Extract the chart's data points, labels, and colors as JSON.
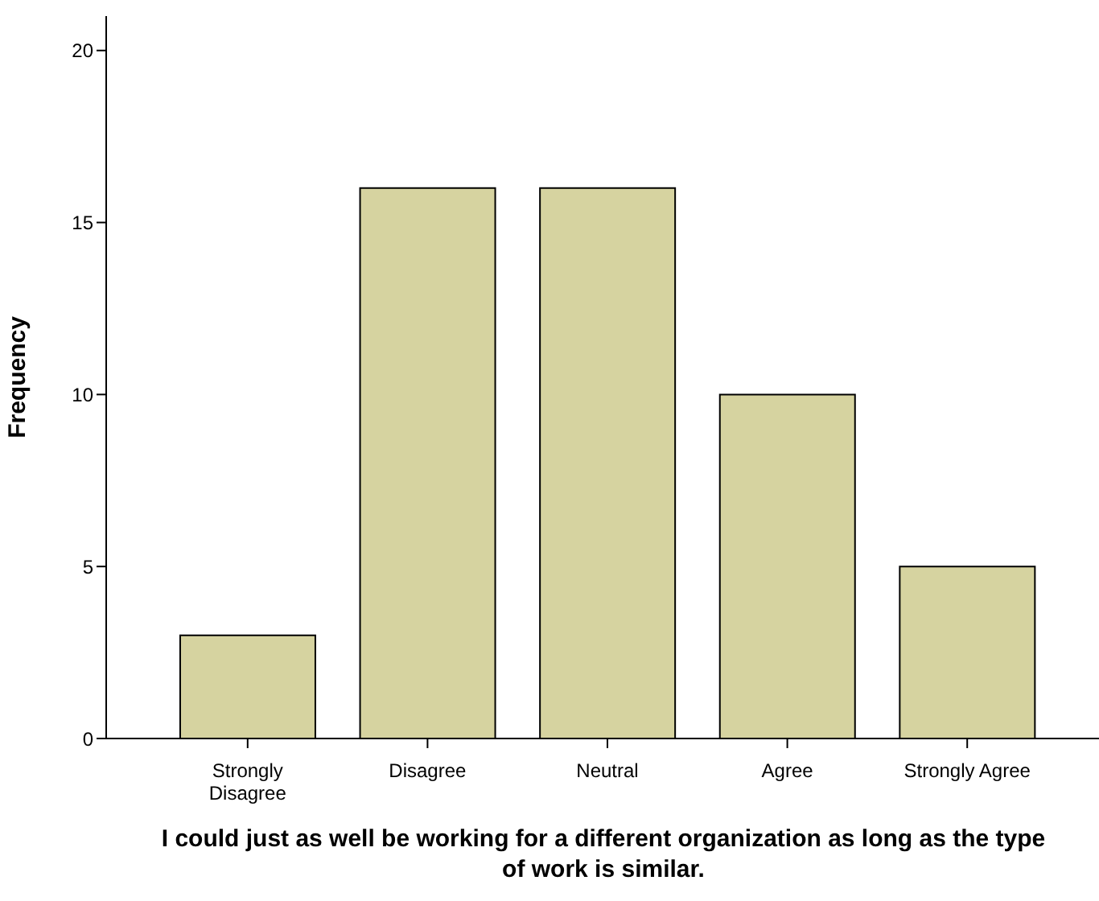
{
  "chart_data": {
    "type": "bar",
    "xlabel": "I could just as well be working for a different organization as long as the type of work is similar.",
    "ylabel": "Frequency",
    "categories": [
      "Strongly Disagree",
      "Disagree",
      "Neutral",
      "Agree",
      "Strongly Agree"
    ],
    "values": [
      3,
      16,
      16,
      10,
      5
    ],
    "color": "#d6d3a0",
    "ylim": [
      0,
      21
    ],
    "yticks": [
      0,
      5,
      10,
      15,
      20
    ],
    "grid": false
  }
}
